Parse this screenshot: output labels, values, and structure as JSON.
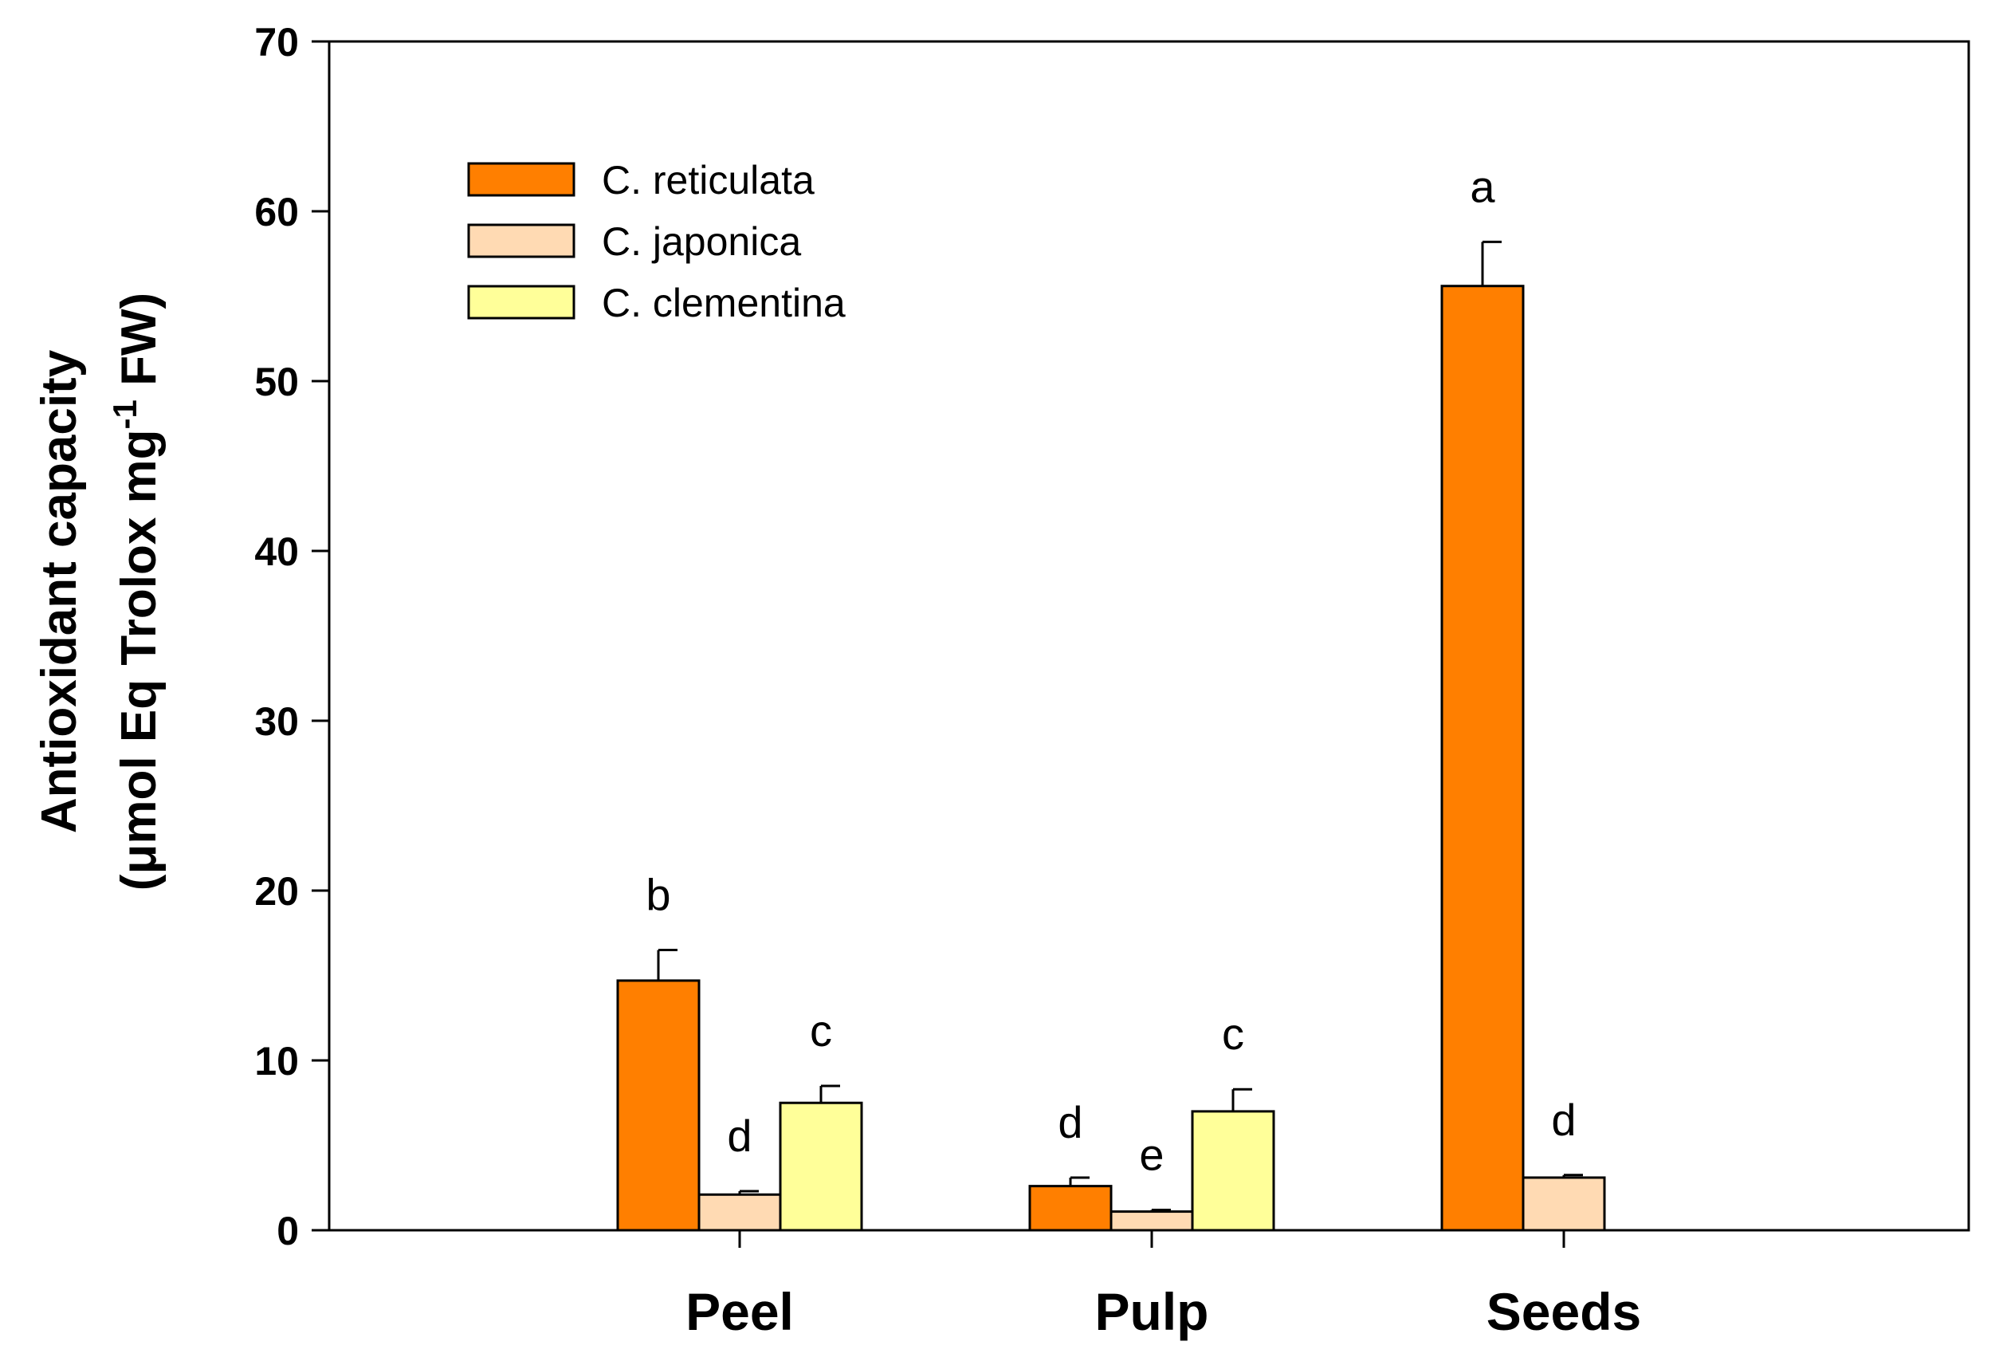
{
  "chart_data": {
    "type": "bar",
    "title": "",
    "xlabel": "",
    "ylabel_line1": "Antioxidant capacity",
    "ylabel_line2": "(μmol Eq Trolox mg",
    "ylabel_superscript": "-1",
    "ylabel_line2_end": " FW)",
    "categories": [
      "Peel",
      "Pulp",
      "Seeds"
    ],
    "ylim": [
      0,
      70
    ],
    "yticks": [
      0,
      10,
      20,
      30,
      40,
      50,
      60,
      70
    ],
    "legend_position": "top-left",
    "series": [
      {
        "name": "C. reticulata",
        "color": "#FF7F00",
        "values": [
          14.7,
          2.6,
          55.6
        ],
        "errors": [
          1.8,
          0.5,
          2.6
        ],
        "letters": [
          "b",
          "d",
          "a"
        ]
      },
      {
        "name": "C. japonica",
        "color": "#FFDAB3",
        "values": [
          2.1,
          1.1,
          3.1
        ],
        "errors": [
          0.2,
          0.1,
          0.15
        ],
        "letters": [
          "d",
          "e",
          "d"
        ]
      },
      {
        "name": "C. clementina",
        "color": "#FFFF99",
        "values": [
          7.5,
          7.0,
          null
        ],
        "errors": [
          1.0,
          1.3,
          null
        ],
        "letters": [
          "c",
          "c",
          null
        ]
      }
    ]
  }
}
